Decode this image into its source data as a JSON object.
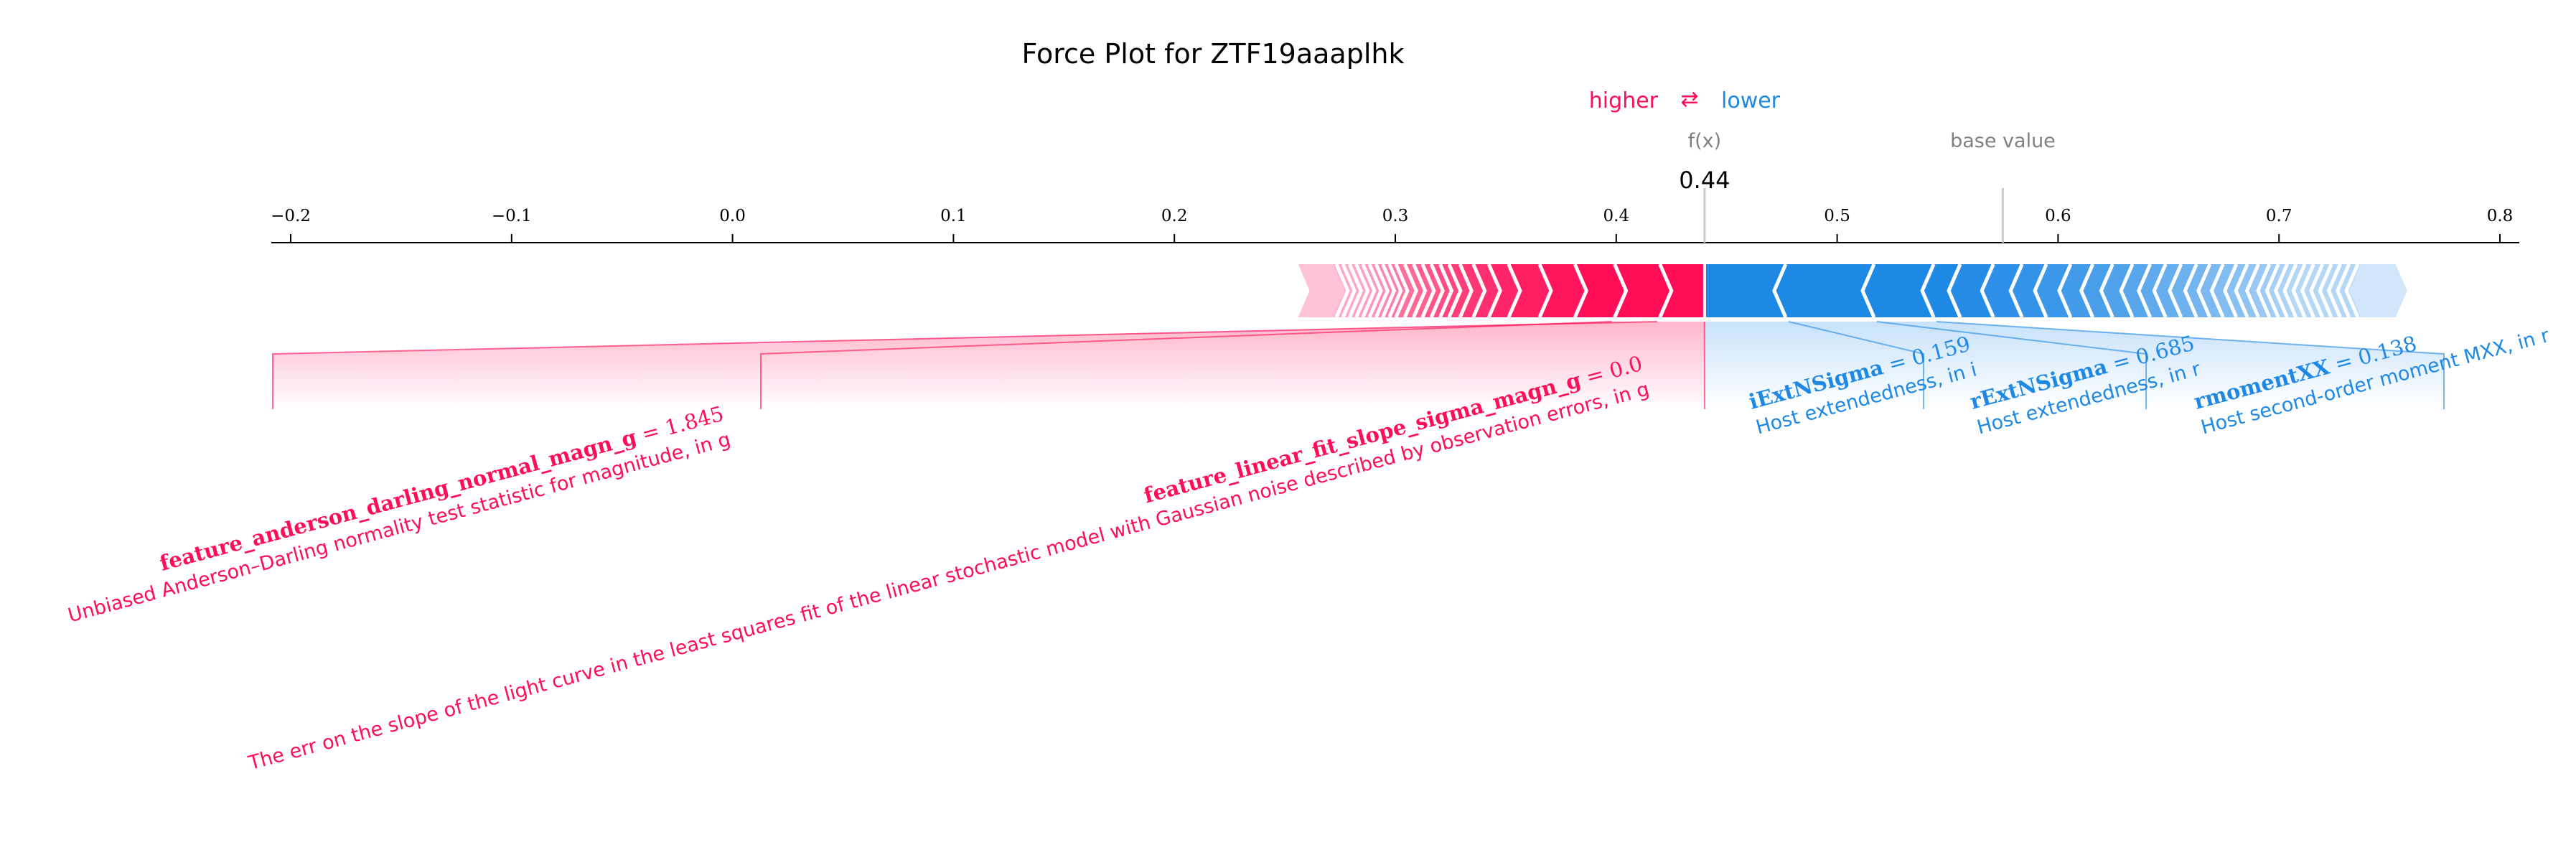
{
  "chart_data": {
    "type": "force",
    "title": "Force Plot for ZTF19aaaplhk",
    "legend": {
      "higher": "higher",
      "lower": "lower",
      "arrows": "⇄"
    },
    "colors": {
      "positive": "#ff0d57",
      "negative": "#1e88e5",
      "positive_light": "#ffc3d5",
      "negative_light": "#d1e6fa"
    },
    "fx_label": "f(x)",
    "fx_value": 0.44,
    "fx_text": "0.44",
    "base_label": "base value",
    "base_value": 0.575,
    "axis": {
      "xlim": [
        -0.21,
        0.81
      ],
      "ticks": [
        -0.2,
        -0.1,
        0.0,
        0.1,
        0.2,
        0.3,
        0.4,
        0.5,
        0.6,
        0.7,
        0.8
      ],
      "tick_labels": [
        "−0.2",
        "−0.1",
        "0.0",
        "0.1",
        "0.2",
        "0.3",
        "0.4",
        "0.5",
        "0.6",
        "0.7",
        "0.8"
      ]
    },
    "bar_range": [
      0.256,
      0.758
    ],
    "positive_features": [
      {
        "name": "feature_anderson_darling_normal_magn_g",
        "value": "1.845",
        "desc": "Unbiased Anderson–Darling normality test statistic for magnitude, in g",
        "start": 0.4185,
        "end": 0.44
      },
      {
        "name": "feature_linear_fit_slope_sigma_magn_g",
        "value": "0.0",
        "desc": "The err on the slope of the light curve in the least squares fit of the linear stochastic model with Gaussian noise described by observation errors, in g",
        "start": 0.398,
        "end": 0.4185
      }
    ],
    "negative_features": [
      {
        "name": "iExtNSigma",
        "value": "0.159",
        "desc": "Host extendedness, in i",
        "start": 0.44,
        "end": 0.478
      },
      {
        "name": "rExtNSigma",
        "value": "0.685",
        "desc": "Host extendedness, in r",
        "start": 0.478,
        "end": 0.518
      },
      {
        "name": "rmomentXX",
        "value": "0.138",
        "desc": "Host second-order moment MXX, in r",
        "start": 0.518,
        "end": 0.545
      }
    ],
    "minor_positive_boundaries": [
      0.38,
      0.364,
      0.35,
      0.341,
      0.334,
      0.328,
      0.323,
      0.319,
      0.315,
      0.311,
      0.307,
      0.303,
      0.299,
      0.296,
      0.293,
      0.29,
      0.287,
      0.284,
      0.281,
      0.278,
      0.275,
      0.272
    ],
    "minor_negative_boundaries": [
      0.557,
      0.572,
      0.585,
      0.596,
      0.607,
      0.617,
      0.626,
      0.635,
      0.643,
      0.65,
      0.657,
      0.664,
      0.67,
      0.676,
      0.682,
      0.687,
      0.692,
      0.697,
      0.701,
      0.705,
      0.709,
      0.713,
      0.717,
      0.721,
      0.725,
      0.729,
      0.733,
      0.737
    ]
  }
}
